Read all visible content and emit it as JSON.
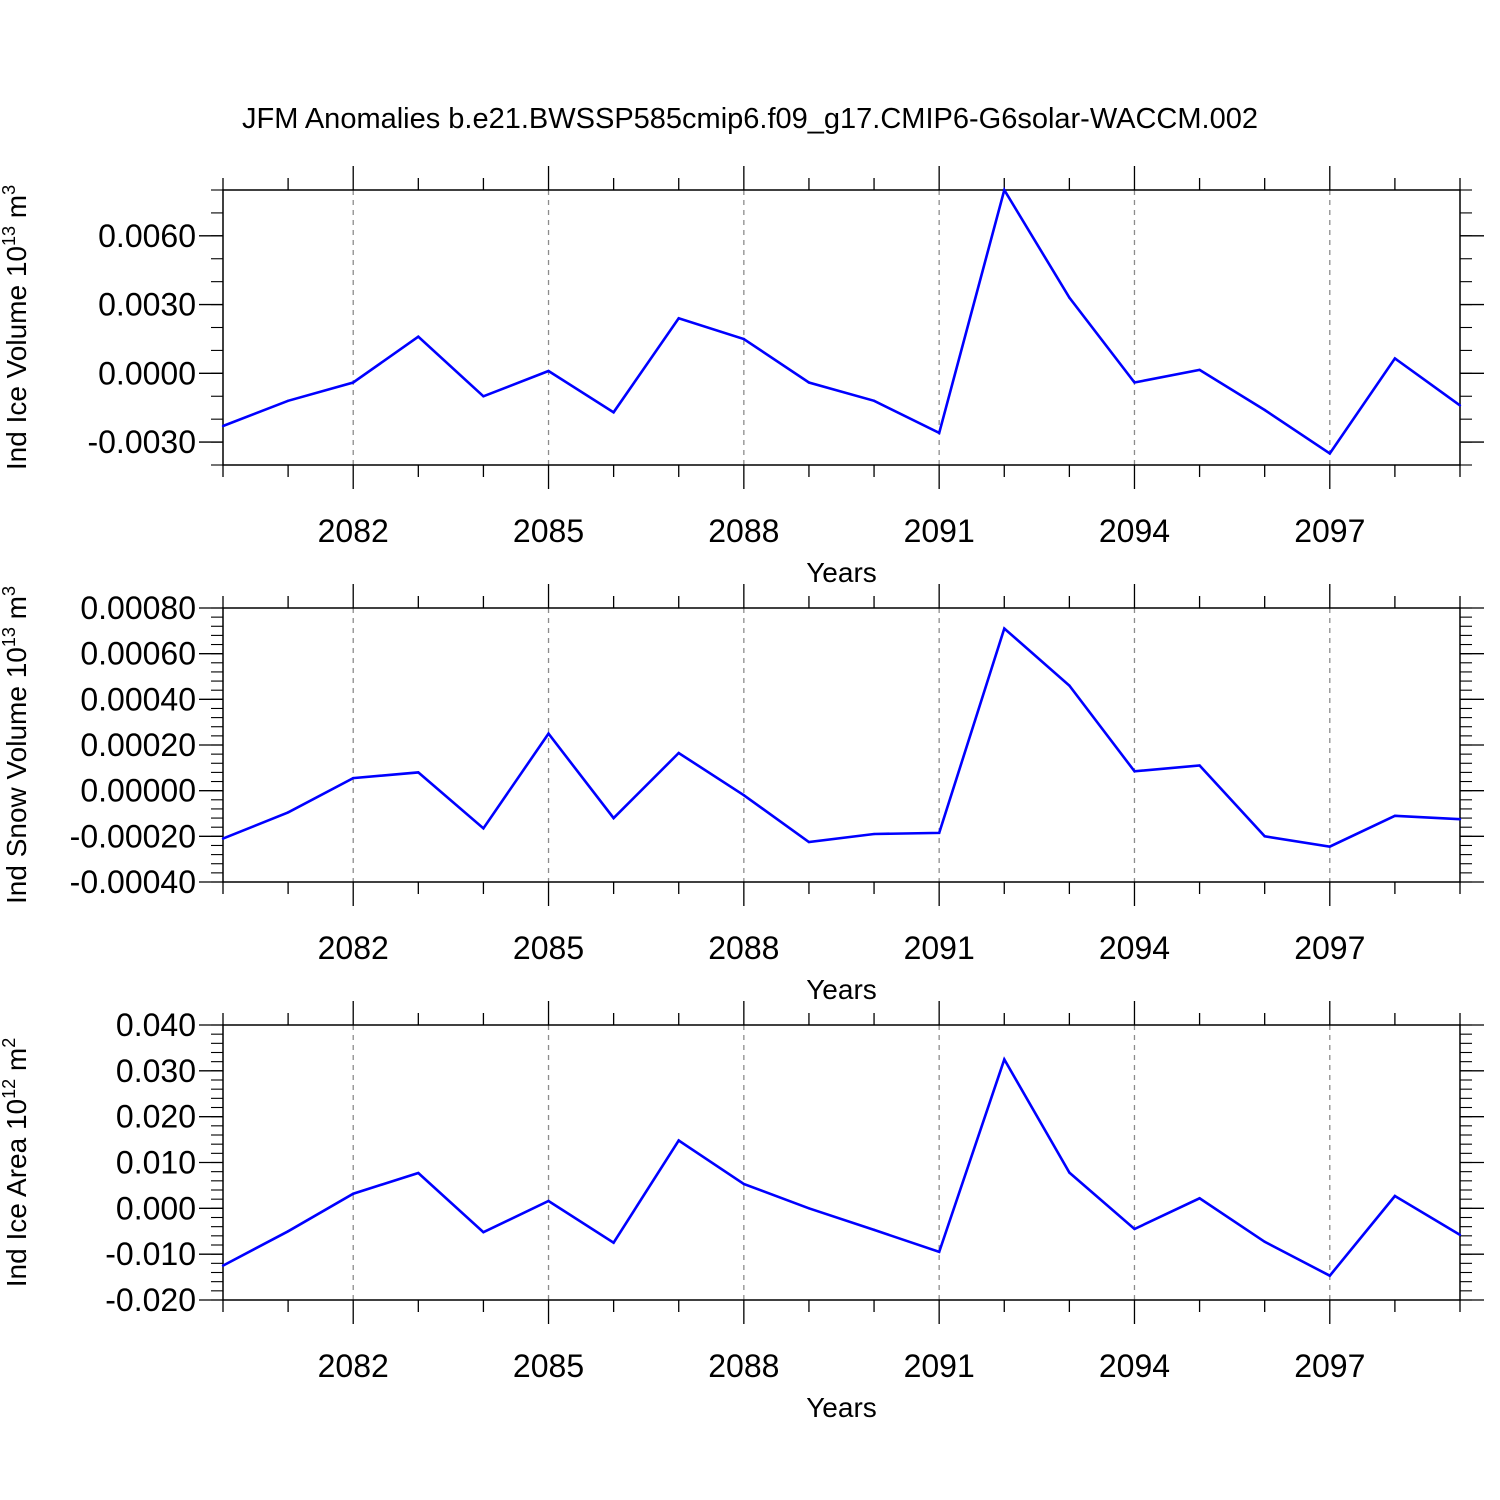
{
  "figure": {
    "title": "JFM Anomalies b.e21.BWSSP585cmip6.f09_g17.CMIP6-G6solar-WACCM.002",
    "line_color": "#0000ff",
    "grid_color": "#8c8c8c"
  },
  "chart_data": [
    {
      "type": "line",
      "xlabel": "Years",
      "ylabel": {
        "main": "Ind Ice Volume 10",
        "exp": "13",
        "unit": " m",
        "unit_exp": "3"
      },
      "xlim": [
        2080,
        2099
      ],
      "ylim": [
        -0.004,
        0.008
      ],
      "x_ticks": [
        2082,
        2085,
        2088,
        2091,
        2094,
        2097
      ],
      "x_tick_labels": [
        "2082",
        "2085",
        "2088",
        "2091",
        "2094",
        "2097"
      ],
      "y_ticks": [
        -0.003,
        0.0,
        0.003,
        0.006
      ],
      "y_tick_labels": [
        "-0.0030",
        "0.0000",
        "0.0030",
        "0.0060"
      ],
      "y_minor_step": 0.001,
      "grid": "vertical dashed at major x ticks",
      "x": [
        2080,
        2081,
        2082,
        2083,
        2084,
        2085,
        2086,
        2087,
        2088,
        2089,
        2090,
        2091,
        2092,
        2093,
        2094,
        2095,
        2096,
        2097,
        2098,
        2099
      ],
      "series": [
        {
          "values": [
            -0.0023,
            -0.0012,
            -0.0004,
            0.0016,
            -0.001,
            0.0001,
            -0.0017,
            0.0024,
            0.0015,
            -0.0004,
            -0.0012,
            -0.0026,
            0.008,
            0.0033,
            -0.0004,
            0.00015,
            -0.0016,
            -0.0035,
            0.00065,
            -0.0014
          ]
        }
      ]
    },
    {
      "type": "line",
      "xlabel": "Years",
      "ylabel": {
        "main": "Ind Snow Volume 10",
        "exp": "13",
        "unit": " m",
        "unit_exp": "3"
      },
      "xlim": [
        2080,
        2099
      ],
      "ylim": [
        -0.0004,
        0.0008
      ],
      "x_ticks": [
        2082,
        2085,
        2088,
        2091,
        2094,
        2097
      ],
      "x_tick_labels": [
        "2082",
        "2085",
        "2088",
        "2091",
        "2094",
        "2097"
      ],
      "y_ticks": [
        -0.0004,
        -0.0002,
        0.0,
        0.0002,
        0.0004,
        0.0006,
        0.0008
      ],
      "y_tick_labels": [
        "-0.00040",
        "-0.00020",
        "0.00000",
        "0.00020",
        "0.00040",
        "0.00060",
        "0.00080"
      ],
      "y_minor_step": 4e-05,
      "grid": "vertical dashed at major x ticks",
      "x": [
        2080,
        2081,
        2082,
        2083,
        2084,
        2085,
        2086,
        2087,
        2088,
        2089,
        2090,
        2091,
        2092,
        2093,
        2094,
        2095,
        2096,
        2097,
        2098,
        2099
      ],
      "series": [
        {
          "values": [
            -0.00021,
            -9.5e-05,
            5.5e-05,
            8e-05,
            -0.000165,
            0.00025,
            -0.00012,
            0.000165,
            -2e-05,
            -0.000225,
            -0.00019,
            -0.000185,
            0.00071,
            0.00046,
            8.5e-05,
            0.00011,
            -0.0002,
            -0.000245,
            -0.00011,
            -0.000125
          ]
        }
      ]
    },
    {
      "type": "line",
      "xlabel": "Years",
      "ylabel": {
        "main": "Ind Ice Area 10",
        "exp": "12",
        "unit": " m",
        "unit_exp": "2"
      },
      "xlim": [
        2080,
        2099
      ],
      "ylim": [
        -0.02,
        0.04
      ],
      "x_ticks": [
        2082,
        2085,
        2088,
        2091,
        2094,
        2097
      ],
      "x_tick_labels": [
        "2082",
        "2085",
        "2088",
        "2091",
        "2094",
        "2097"
      ],
      "y_ticks": [
        -0.02,
        -0.01,
        0.0,
        0.01,
        0.02,
        0.03,
        0.04
      ],
      "y_tick_labels": [
        "-0.020",
        "-0.010",
        "0.000",
        "0.010",
        "0.020",
        "0.030",
        "0.040"
      ],
      "y_minor_step": 0.002,
      "grid": "vertical dashed at major x ticks",
      "x": [
        2080,
        2081,
        2082,
        2083,
        2084,
        2085,
        2086,
        2087,
        2088,
        2089,
        2090,
        2091,
        2092,
        2093,
        2094,
        2095,
        2096,
        2097,
        2098,
        2099
      ],
      "series": [
        {
          "values": [
            -0.0125,
            -0.005,
            0.0032,
            0.0077,
            -0.0052,
            0.0016,
            -0.0075,
            0.0148,
            0.0053,
            0.0,
            -0.0047,
            -0.0095,
            0.0325,
            0.0078,
            -0.0045,
            0.0022,
            -0.0073,
            -0.0147,
            0.0027,
            -0.0058
          ]
        }
      ]
    }
  ]
}
